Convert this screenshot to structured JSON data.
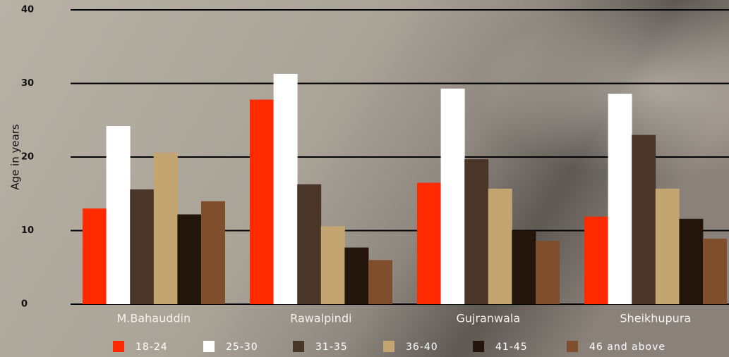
{
  "chart_data": {
    "type": "bar",
    "y_label": "Age in years",
    "categories": [
      "M.Bahauddin",
      "Rawalpindi",
      "Gujranwala",
      "Sheikhupura"
    ],
    "series": [
      {
        "name": "18-24",
        "color": "#ff2a00",
        "values": [
          13,
          27.8,
          16.5,
          11.9
        ]
      },
      {
        "name": "25-30",
        "color": "#ffffff",
        "values": [
          24.2,
          31.3,
          29.3,
          28.6
        ]
      },
      {
        "name": "31-35",
        "color": "#4a3628",
        "values": [
          15.6,
          16.3,
          19.7,
          23
        ]
      },
      {
        "name": "36-40",
        "color": "#c3a572",
        "values": [
          20.6,
          10.6,
          15.7,
          15.7
        ]
      },
      {
        "name": "41-45",
        "color": "#24150c",
        "values": [
          12.2,
          7.7,
          10,
          11.6
        ]
      },
      {
        "name": "46 and above",
        "color": "#7f4e2c",
        "values": [
          14,
          6,
          8.6,
          8.9
        ]
      }
    ],
    "ylim": [
      0,
      40
    ],
    "yticks": [
      0,
      10,
      20,
      30,
      40
    ],
    "grid": true
  }
}
